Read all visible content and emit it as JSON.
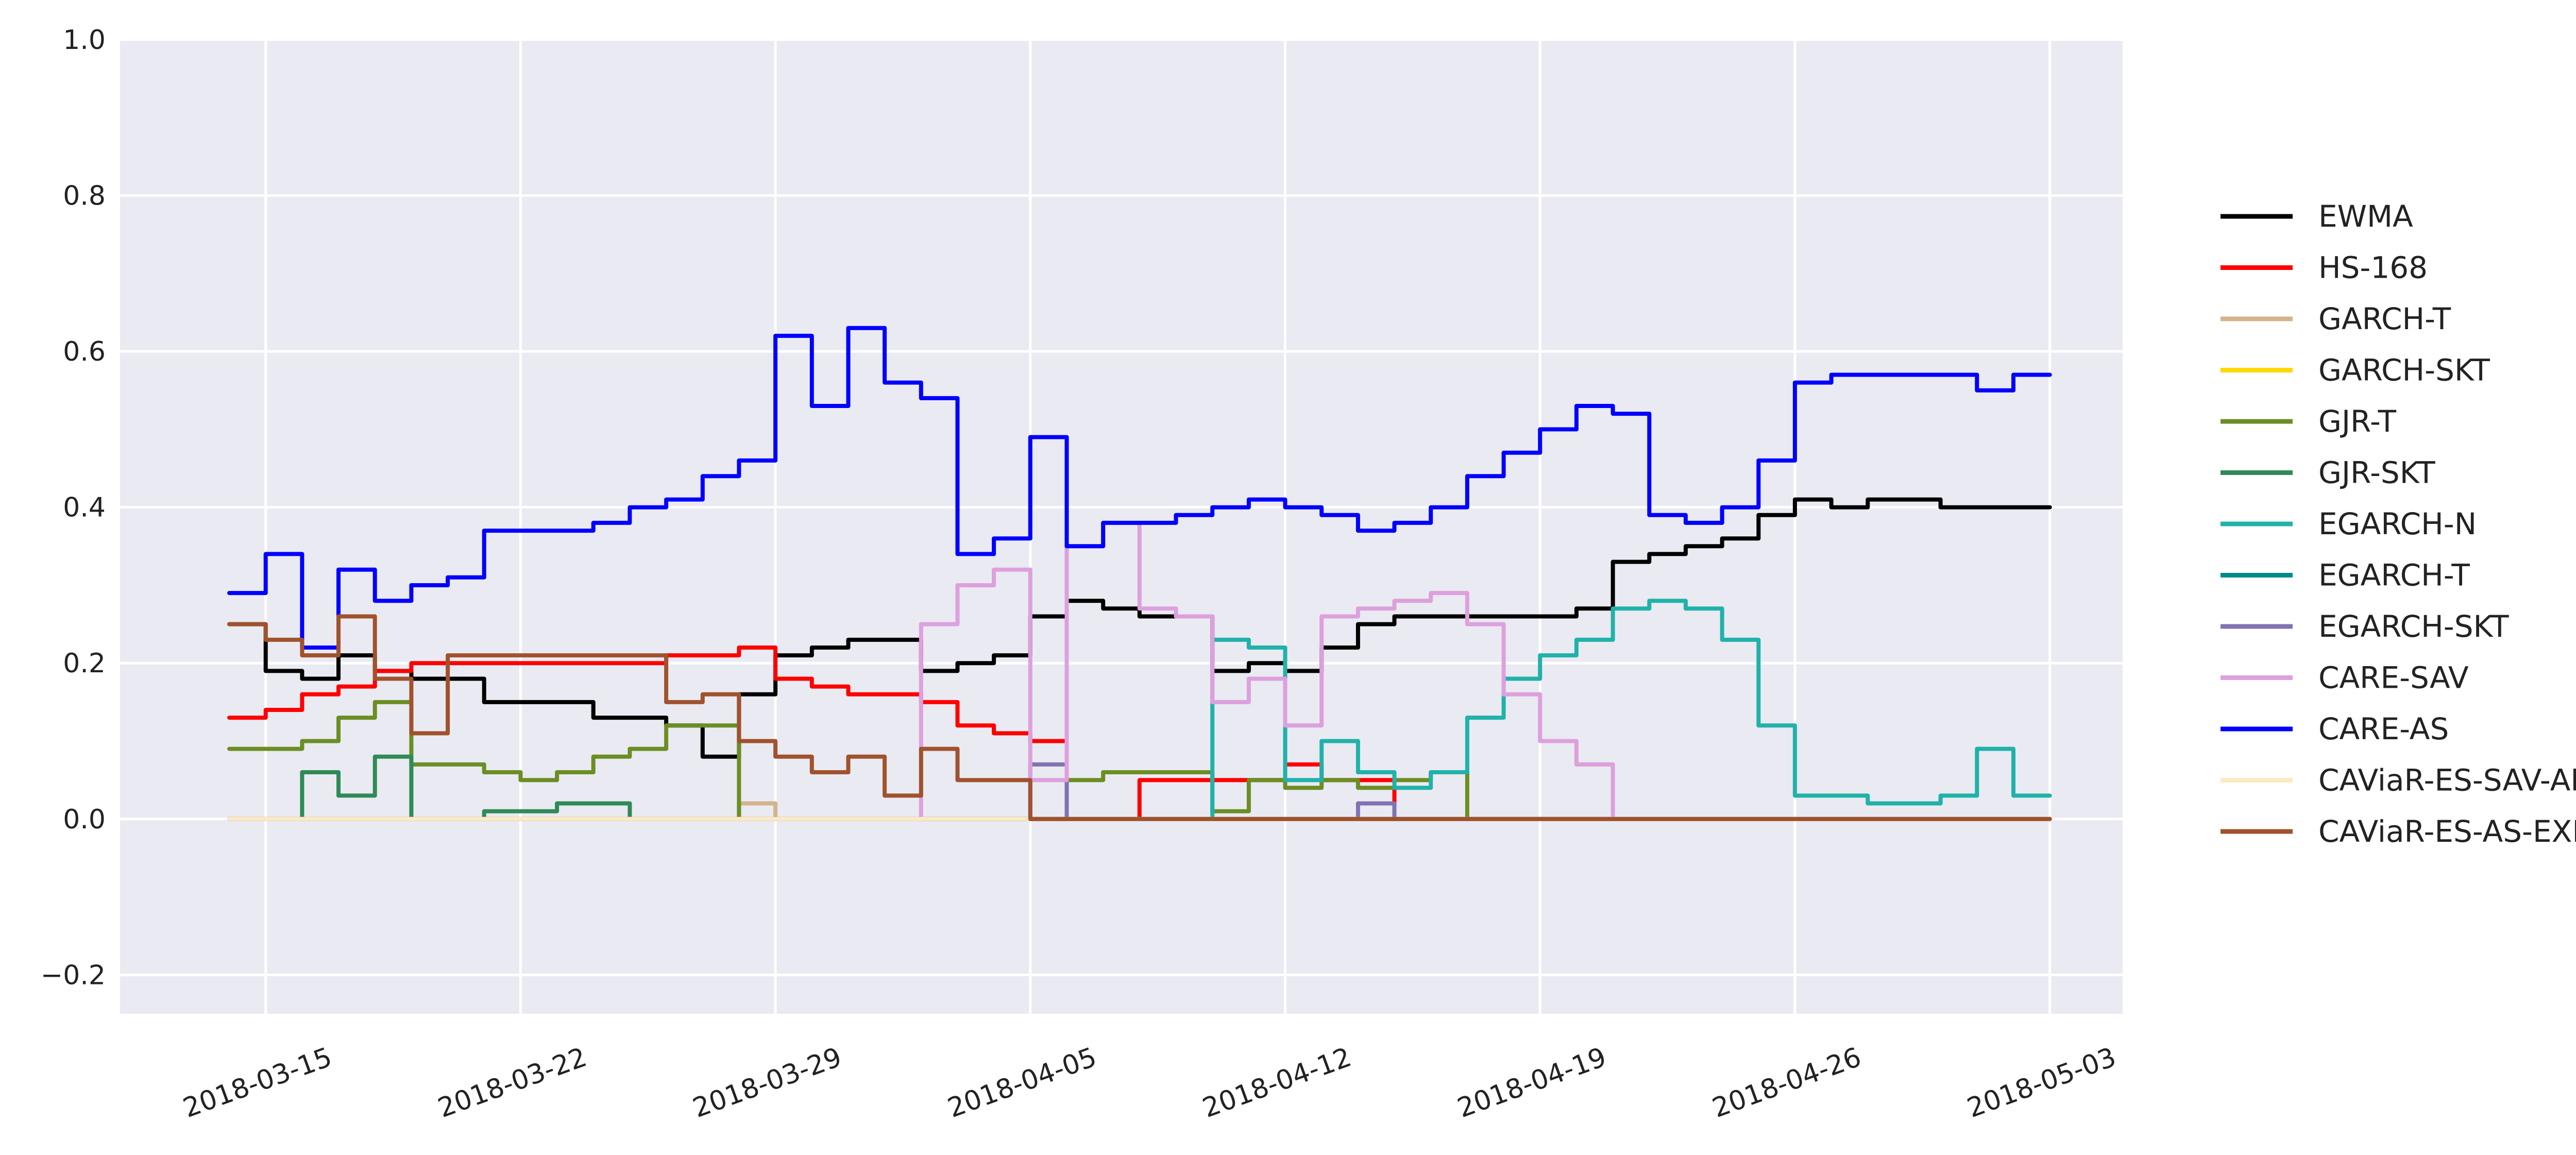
{
  "chart_data": {
    "type": "line",
    "title": "",
    "xlabel": "",
    "ylabel": "",
    "x_range": [
      "2018-03-11",
      "2018-05-05"
    ],
    "data_x_range": [
      "2018-03-14",
      "2018-05-03"
    ],
    "ylim": [
      -0.25,
      1.0
    ],
    "x_ticks": [
      "2018-03-15",
      "2018-03-22",
      "2018-03-29",
      "2018-04-05",
      "2018-04-12",
      "2018-04-19",
      "2018-04-26",
      "2018-05-03"
    ],
    "y_ticks": [
      -0.2,
      0.0,
      0.2,
      0.4,
      0.6,
      0.8,
      1.0
    ],
    "y_tick_labels": [
      "−0.2",
      "0.0",
      "0.2",
      "0.4",
      "0.6",
      "0.8",
      "1.0"
    ],
    "grid": true,
    "legend_position": "right",
    "plot_background": "#eaeaf2",
    "series": [
      {
        "name": "EWMA",
        "color": "#000000",
        "points": [
          [
            "2018-03-14",
            0.25
          ],
          [
            "2018-03-15",
            0.19
          ],
          [
            "2018-03-16",
            0.18
          ],
          [
            "2018-03-17",
            0.21
          ],
          [
            "2018-03-18",
            0.19
          ],
          [
            "2018-03-19",
            0.18
          ],
          [
            "2018-03-20",
            0.18
          ],
          [
            "2018-03-21",
            0.15
          ],
          [
            "2018-03-23",
            0.15
          ],
          [
            "2018-03-24",
            0.13
          ],
          [
            "2018-03-26",
            0.12
          ],
          [
            "2018-03-27",
            0.08
          ],
          [
            "2018-03-28",
            0.16
          ],
          [
            "2018-03-29",
            0.21
          ],
          [
            "2018-03-30",
            0.22
          ],
          [
            "2018-03-31",
            0.23
          ],
          [
            "2018-04-01",
            0.23
          ],
          [
            "2018-04-02",
            0.19
          ],
          [
            "2018-04-03",
            0.2
          ],
          [
            "2018-04-04",
            0.21
          ],
          [
            "2018-04-05",
            0.26
          ],
          [
            "2018-04-06",
            0.28
          ],
          [
            "2018-04-07",
            0.27
          ],
          [
            "2018-04-08",
            0.26
          ],
          [
            "2018-04-09",
            0.26
          ],
          [
            "2018-04-10",
            0.19
          ],
          [
            "2018-04-11",
            0.2
          ],
          [
            "2018-04-12",
            0.19
          ],
          [
            "2018-04-13",
            0.22
          ],
          [
            "2018-04-14",
            0.25
          ],
          [
            "2018-04-15",
            0.26
          ],
          [
            "2018-04-17",
            0.26
          ],
          [
            "2018-04-19",
            0.26
          ],
          [
            "2018-04-20",
            0.27
          ],
          [
            "2018-04-21",
            0.33
          ],
          [
            "2018-04-22",
            0.34
          ],
          [
            "2018-04-23",
            0.35
          ],
          [
            "2018-04-24",
            0.36
          ],
          [
            "2018-04-25",
            0.39
          ],
          [
            "2018-04-26",
            0.41
          ],
          [
            "2018-04-27",
            0.4
          ],
          [
            "2018-04-28",
            0.41
          ],
          [
            "2018-04-29",
            0.41
          ],
          [
            "2018-04-30",
            0.4
          ],
          [
            "2018-05-01",
            0.4
          ],
          [
            "2018-05-02",
            0.4
          ],
          [
            "2018-05-03",
            0.4
          ]
        ]
      },
      {
        "name": "HS-168",
        "color": "#ff0000",
        "points": [
          [
            "2018-03-14",
            0.13
          ],
          [
            "2018-03-15",
            0.14
          ],
          [
            "2018-03-16",
            0.16
          ],
          [
            "2018-03-17",
            0.17
          ],
          [
            "2018-03-18",
            0.19
          ],
          [
            "2018-03-19",
            0.2
          ],
          [
            "2018-03-20",
            0.2
          ],
          [
            "2018-03-21",
            0.2
          ],
          [
            "2018-03-23",
            0.2
          ],
          [
            "2018-03-25",
            0.2
          ],
          [
            "2018-03-26",
            0.21
          ],
          [
            "2018-03-27",
            0.21
          ],
          [
            "2018-03-28",
            0.22
          ],
          [
            "2018-03-29",
            0.18
          ],
          [
            "2018-03-30",
            0.17
          ],
          [
            "2018-03-31",
            0.16
          ],
          [
            "2018-04-01",
            0.16
          ],
          [
            "2018-04-02",
            0.15
          ],
          [
            "2018-04-03",
            0.12
          ],
          [
            "2018-04-04",
            0.11
          ],
          [
            "2018-04-05",
            0.1
          ],
          [
            "2018-04-06",
            0.0
          ],
          [
            "2018-04-07",
            0.0
          ],
          [
            "2018-04-08",
            0.05
          ],
          [
            "2018-04-09",
            0.05
          ],
          [
            "2018-04-10",
            0.05
          ],
          [
            "2018-04-11",
            0.05
          ],
          [
            "2018-04-12",
            0.07
          ],
          [
            "2018-04-13",
            0.05
          ],
          [
            "2018-04-14",
            0.05
          ],
          [
            "2018-04-15",
            0.0
          ],
          [
            "2018-05-03",
            0.0
          ]
        ]
      },
      {
        "name": "GARCH-T",
        "color": "#d2b48c",
        "points": [
          [
            "2018-03-14",
            0.0
          ],
          [
            "2018-03-27",
            0.0
          ],
          [
            "2018-03-28",
            0.02
          ],
          [
            "2018-03-29",
            0.0
          ],
          [
            "2018-05-03",
            0.0
          ]
        ]
      },
      {
        "name": "GARCH-SKT",
        "color": "#ffd700",
        "points": [
          [
            "2018-03-14",
            0.0
          ],
          [
            "2018-05-03",
            0.0
          ]
        ]
      },
      {
        "name": "GJR-T",
        "color": "#6b8e23",
        "points": [
          [
            "2018-03-14",
            0.09
          ],
          [
            "2018-03-15",
            0.09
          ],
          [
            "2018-03-16",
            0.1
          ],
          [
            "2018-03-17",
            0.13
          ],
          [
            "2018-03-18",
            0.15
          ],
          [
            "2018-03-19",
            0.07
          ],
          [
            "2018-03-20",
            0.07
          ],
          [
            "2018-03-21",
            0.06
          ],
          [
            "2018-03-22",
            0.05
          ],
          [
            "2018-03-23",
            0.06
          ],
          [
            "2018-03-24",
            0.08
          ],
          [
            "2018-03-25",
            0.09
          ],
          [
            "2018-03-26",
            0.12
          ],
          [
            "2018-03-27",
            0.12
          ],
          [
            "2018-03-28",
            0.0
          ],
          [
            "2018-04-05",
            0.0
          ],
          [
            "2018-04-06",
            0.05
          ],
          [
            "2018-04-07",
            0.06
          ],
          [
            "2018-04-09",
            0.06
          ],
          [
            "2018-04-10",
            0.01
          ],
          [
            "2018-04-11",
            0.05
          ],
          [
            "2018-04-12",
            0.04
          ],
          [
            "2018-04-13",
            0.05
          ],
          [
            "2018-04-14",
            0.04
          ],
          [
            "2018-04-15",
            0.05
          ],
          [
            "2018-04-16",
            0.06
          ],
          [
            "2018-04-17",
            0.0
          ],
          [
            "2018-05-03",
            0.0
          ]
        ]
      },
      {
        "name": "GJR-SKT",
        "color": "#2e8b57",
        "points": [
          [
            "2018-03-14",
            0.0
          ],
          [
            "2018-03-15",
            0.0
          ],
          [
            "2018-03-16",
            0.06
          ],
          [
            "2018-03-17",
            0.03
          ],
          [
            "2018-03-18",
            0.08
          ],
          [
            "2018-03-19",
            0.0
          ],
          [
            "2018-03-21",
            0.01
          ],
          [
            "2018-03-23",
            0.02
          ],
          [
            "2018-03-25",
            0.0
          ],
          [
            "2018-05-03",
            0.0
          ]
        ]
      },
      {
        "name": "EGARCH-N",
        "color": "#20b2aa",
        "points": [
          [
            "2018-03-14",
            0.0
          ],
          [
            "2018-04-09",
            0.0
          ],
          [
            "2018-04-10",
            0.23
          ],
          [
            "2018-04-11",
            0.22
          ],
          [
            "2018-04-12",
            0.05
          ],
          [
            "2018-04-13",
            0.1
          ],
          [
            "2018-04-14",
            0.06
          ],
          [
            "2018-04-15",
            0.04
          ],
          [
            "2018-04-16",
            0.06
          ],
          [
            "2018-04-17",
            0.13
          ],
          [
            "2018-04-18",
            0.18
          ],
          [
            "2018-04-19",
            0.21
          ],
          [
            "2018-04-20",
            0.23
          ],
          [
            "2018-04-21",
            0.27
          ],
          [
            "2018-04-22",
            0.28
          ],
          [
            "2018-04-23",
            0.27
          ],
          [
            "2018-04-24",
            0.23
          ],
          [
            "2018-04-25",
            0.12
          ],
          [
            "2018-04-26",
            0.03
          ],
          [
            "2018-04-27",
            0.03
          ],
          [
            "2018-04-28",
            0.02
          ],
          [
            "2018-04-29",
            0.02
          ],
          [
            "2018-04-30",
            0.03
          ],
          [
            "2018-05-01",
            0.09
          ],
          [
            "2018-05-02",
            0.03
          ],
          [
            "2018-05-03",
            0.03
          ]
        ]
      },
      {
        "name": "EGARCH-T",
        "color": "#008b8b",
        "points": [
          [
            "2018-03-14",
            0.0
          ],
          [
            "2018-05-03",
            0.0
          ]
        ]
      },
      {
        "name": "EGARCH-SKT",
        "color": "#8172b3",
        "points": [
          [
            "2018-03-14",
            0.0
          ],
          [
            "2018-04-04",
            0.0
          ],
          [
            "2018-04-05",
            0.07
          ],
          [
            "2018-04-06",
            0.0
          ],
          [
            "2018-04-13",
            0.0
          ],
          [
            "2018-04-14",
            0.02
          ],
          [
            "2018-04-15",
            0.0
          ],
          [
            "2018-05-03",
            0.0
          ]
        ]
      },
      {
        "name": "CARE-SAV",
        "color": "#dda0dd",
        "points": [
          [
            "2018-03-14",
            0.0
          ],
          [
            "2018-04-01",
            0.0
          ],
          [
            "2018-04-02",
            0.25
          ],
          [
            "2018-04-03",
            0.3
          ],
          [
            "2018-04-04",
            0.32
          ],
          [
            "2018-04-05",
            0.05
          ],
          [
            "2018-04-06",
            0.35
          ],
          [
            "2018-04-07",
            0.38
          ],
          [
            "2018-04-08",
            0.27
          ],
          [
            "2018-04-09",
            0.26
          ],
          [
            "2018-04-10",
            0.15
          ],
          [
            "2018-04-11",
            0.18
          ],
          [
            "2018-04-12",
            0.12
          ],
          [
            "2018-04-13",
            0.26
          ],
          [
            "2018-04-14",
            0.27
          ],
          [
            "2018-04-15",
            0.28
          ],
          [
            "2018-04-16",
            0.29
          ],
          [
            "2018-04-17",
            0.25
          ],
          [
            "2018-04-18",
            0.16
          ],
          [
            "2018-04-19",
            0.1
          ],
          [
            "2018-04-20",
            0.07
          ],
          [
            "2018-04-21",
            0.0
          ],
          [
            "2018-05-03",
            0.0
          ]
        ]
      },
      {
        "name": "CARE-AS",
        "color": "#0000ff",
        "points": [
          [
            "2018-03-14",
            0.29
          ],
          [
            "2018-03-15",
            0.34
          ],
          [
            "2018-03-16",
            0.22
          ],
          [
            "2018-03-17",
            0.32
          ],
          [
            "2018-03-18",
            0.28
          ],
          [
            "2018-03-19",
            0.3
          ],
          [
            "2018-03-20",
            0.31
          ],
          [
            "2018-03-21",
            0.37
          ],
          [
            "2018-03-22",
            0.37
          ],
          [
            "2018-03-23",
            0.37
          ],
          [
            "2018-03-24",
            0.38
          ],
          [
            "2018-03-25",
            0.4
          ],
          [
            "2018-03-26",
            0.41
          ],
          [
            "2018-03-27",
            0.44
          ],
          [
            "2018-03-28",
            0.46
          ],
          [
            "2018-03-29",
            0.62
          ],
          [
            "2018-03-30",
            0.53
          ],
          [
            "2018-03-31",
            0.63
          ],
          [
            "2018-04-01",
            0.56
          ],
          [
            "2018-04-02",
            0.54
          ],
          [
            "2018-04-03",
            0.34
          ],
          [
            "2018-04-04",
            0.36
          ],
          [
            "2018-04-05",
            0.49
          ],
          [
            "2018-04-06",
            0.35
          ],
          [
            "2018-04-07",
            0.38
          ],
          [
            "2018-04-08",
            0.38
          ],
          [
            "2018-04-09",
            0.39
          ],
          [
            "2018-04-10",
            0.4
          ],
          [
            "2018-04-11",
            0.41
          ],
          [
            "2018-04-12",
            0.4
          ],
          [
            "2018-04-13",
            0.39
          ],
          [
            "2018-04-14",
            0.37
          ],
          [
            "2018-04-15",
            0.38
          ],
          [
            "2018-04-16",
            0.4
          ],
          [
            "2018-04-17",
            0.44
          ],
          [
            "2018-04-18",
            0.47
          ],
          [
            "2018-04-19",
            0.5
          ],
          [
            "2018-04-20",
            0.53
          ],
          [
            "2018-04-21",
            0.52
          ],
          [
            "2018-04-22",
            0.39
          ],
          [
            "2018-04-23",
            0.38
          ],
          [
            "2018-04-24",
            0.4
          ],
          [
            "2018-04-25",
            0.46
          ],
          [
            "2018-04-26",
            0.56
          ],
          [
            "2018-04-27",
            0.57
          ],
          [
            "2018-04-28",
            0.57
          ],
          [
            "2018-04-29",
            0.57
          ],
          [
            "2018-04-30",
            0.57
          ],
          [
            "2018-05-01",
            0.55
          ],
          [
            "2018-05-02",
            0.57
          ],
          [
            "2018-05-03",
            0.57
          ]
        ]
      },
      {
        "name": "CAViaR-ES-SAV-AR",
        "color": "#fde9c1",
        "points": [
          [
            "2018-03-14",
            0.0
          ],
          [
            "2018-05-03",
            0.0
          ]
        ]
      },
      {
        "name": "CAViaR-ES-AS-EXP",
        "color": "#a0522d",
        "points": [
          [
            "2018-03-14",
            0.25
          ],
          [
            "2018-03-15",
            0.23
          ],
          [
            "2018-03-16",
            0.21
          ],
          [
            "2018-03-17",
            0.26
          ],
          [
            "2018-03-18",
            0.18
          ],
          [
            "2018-03-19",
            0.11
          ],
          [
            "2018-03-20",
            0.21
          ],
          [
            "2018-03-21",
            0.21
          ],
          [
            "2018-03-23",
            0.21
          ],
          [
            "2018-03-25",
            0.21
          ],
          [
            "2018-03-26",
            0.15
          ],
          [
            "2018-03-27",
            0.16
          ],
          [
            "2018-03-28",
            0.1
          ],
          [
            "2018-03-29",
            0.08
          ],
          [
            "2018-03-30",
            0.06
          ],
          [
            "2018-03-31",
            0.08
          ],
          [
            "2018-04-01",
            0.03
          ],
          [
            "2018-04-02",
            0.09
          ],
          [
            "2018-04-03",
            0.05
          ],
          [
            "2018-04-04",
            0.05
          ],
          [
            "2018-04-05",
            0.0
          ],
          [
            "2018-05-03",
            0.0
          ]
        ]
      }
    ]
  }
}
